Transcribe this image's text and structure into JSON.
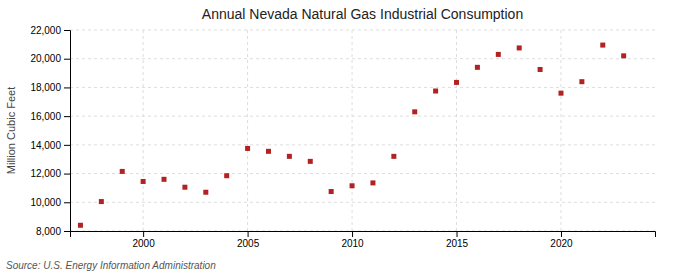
{
  "chart_data": {
    "type": "scatter",
    "title": "Annual Nevada Natural Gas Industrial Consumption",
    "ylabel": "Million Cubic Feet",
    "annotations": [
      "Source: U.S. Energy Information Administration"
    ],
    "color": "#b22222",
    "marker": "square",
    "grid": true,
    "x": [
      1997,
      1998,
      1999,
      2000,
      2001,
      2002,
      2003,
      2004,
      2005,
      2006,
      2007,
      2008,
      2009,
      2010,
      2011,
      2012,
      2013,
      2014,
      2015,
      2016,
      2017,
      2018,
      2019,
      2020,
      2021,
      2022,
      2023
    ],
    "values": [
      8400,
      10050,
      12150,
      11450,
      11600,
      11050,
      10700,
      11850,
      13750,
      13550,
      13200,
      12850,
      10750,
      11150,
      11350,
      13200,
      16300,
      17750,
      18350,
      19400,
      20300,
      20750,
      19250,
      17600,
      18400,
      20950,
      20200
    ],
    "xlim": [
      1996.5,
      2024.5
    ],
    "xticks": [
      2000,
      2005,
      2010,
      2015,
      2020
    ],
    "ylim": [
      8000,
      22000
    ],
    "yticks": [
      {
        "value": 8000,
        "label": "8,000"
      },
      {
        "value": 10000,
        "label": "10,000"
      },
      {
        "value": 12000,
        "label": "12,000"
      },
      {
        "value": 14000,
        "label": "14,000"
      },
      {
        "value": 16000,
        "label": "16,000"
      },
      {
        "value": 18000,
        "label": "18,000"
      },
      {
        "value": 20000,
        "label": "20,000"
      },
      {
        "value": 22000,
        "label": "22,000"
      }
    ]
  }
}
